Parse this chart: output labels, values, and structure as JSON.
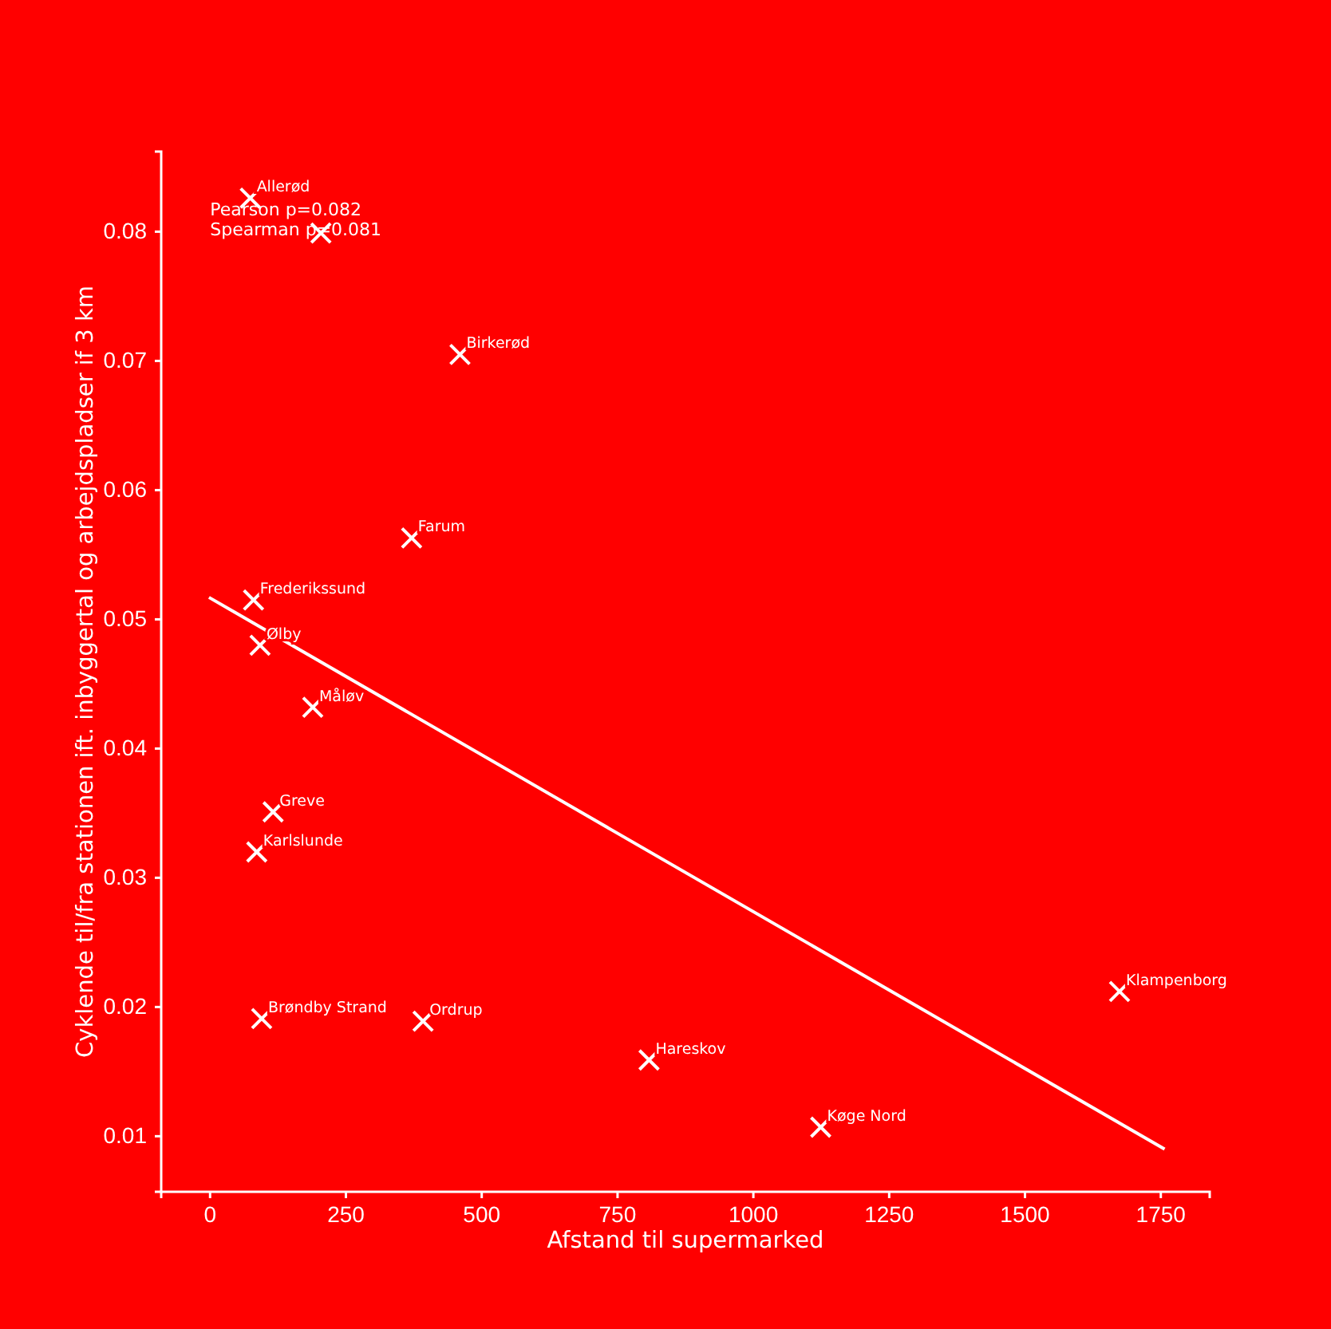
{
  "chart_data": {
    "type": "scatter",
    "xlabel": "Afstand til supermarked",
    "ylabel": "Cyklende til/fra stationen ift. inbyggertal og arbejdspladser if 3 km",
    "xlim": [
      -90,
      1840
    ],
    "ylim": [
      0.0057,
      0.0862
    ],
    "xticks": [
      0,
      250,
      500,
      750,
      1000,
      1250,
      1500,
      1750
    ],
    "yticks": [
      0.01,
      0.02,
      0.03,
      0.04,
      0.05,
      0.06,
      0.07,
      0.08
    ],
    "grid": false,
    "series": [
      {
        "marker": "cross",
        "color": "#ffffff",
        "x": [
          74,
          204,
          460,
          371,
          80,
          92,
          189,
          116,
          86,
          95,
          392,
          808,
          1124,
          1674
        ],
        "values": [
          0.0826,
          0.0799,
          0.0705,
          0.0563,
          0.0515,
          0.048,
          0.0432,
          0.0351,
          0.032,
          0.0191,
          0.0189,
          0.0159,
          0.0107,
          0.0212
        ]
      },
      {
        "type": "line",
        "color": "#ffffff",
        "x": [
          -2,
          1757
        ],
        "values": [
          0.0517,
          0.009
        ]
      }
    ],
    "annotations": [
      "Pearson p=0.082",
      "Spearman p=0.081",
      {
        "text": "Allerød",
        "x": 74,
        "y": 0.0826
      },
      {
        "text": "Birkerød",
        "x": 460,
        "y": 0.0705
      },
      {
        "text": "Farum",
        "x": 371,
        "y": 0.0563
      },
      {
        "text": "Frederikssund",
        "x": 80,
        "y": 0.0515
      },
      {
        "text": "Ølby",
        "x": 92,
        "y": 0.048
      },
      {
        "text": "Måløv",
        "x": 189,
        "y": 0.0432
      },
      {
        "text": "Greve",
        "x": 116,
        "y": 0.0351
      },
      {
        "text": "Karlslunde",
        "x": 86,
        "y": 0.032
      },
      {
        "text": "Brøndby Strand",
        "x": 95,
        "y": 0.0191
      },
      {
        "text": "Ordrup",
        "x": 392,
        "y": 0.0189
      },
      {
        "text": "Hareskov",
        "x": 808,
        "y": 0.0159
      },
      {
        "text": "Køge Nord",
        "x": 1124,
        "y": 0.0107
      },
      {
        "text": "Klampenborg",
        "x": 1674,
        "y": 0.0212
      }
    ]
  }
}
